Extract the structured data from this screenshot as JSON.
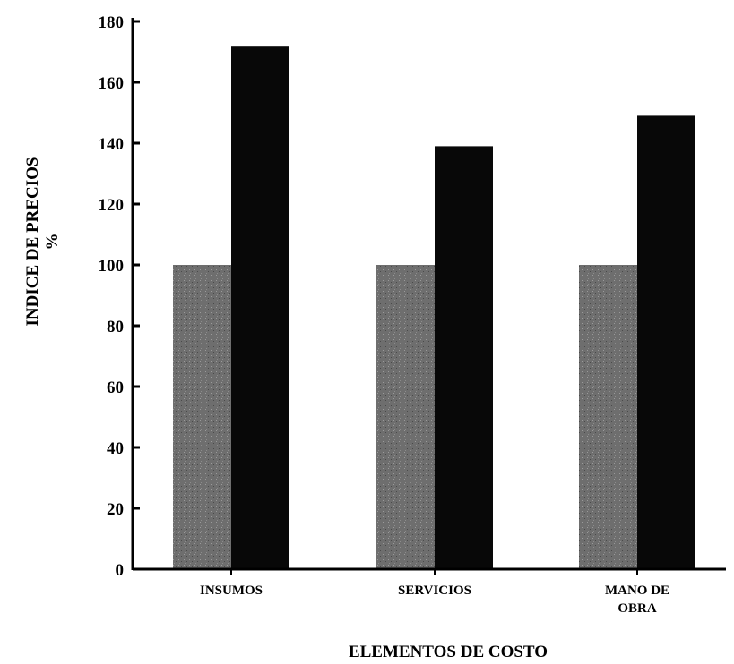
{
  "chart_data": {
    "type": "bar",
    "title": "",
    "xlabel": "ELEMENTOS DE COSTO",
    "ylabel_lines": [
      "INDICE DE PRECIOS",
      "%"
    ],
    "ylim": [
      0,
      180
    ],
    "yticks": [
      0,
      20,
      40,
      60,
      80,
      100,
      120,
      140,
      160,
      180
    ],
    "categories": [
      [
        "INSUMOS"
      ],
      [
        "SERVICIOS"
      ],
      [
        "MANO DE",
        "OBRA"
      ]
    ],
    "series": [
      {
        "color": "#6e6e6e",
        "values": [
          100,
          100,
          100
        ]
      },
      {
        "color": "#080808",
        "values": [
          172,
          139,
          149
        ]
      }
    ],
    "grid": false,
    "legend": "none"
  }
}
